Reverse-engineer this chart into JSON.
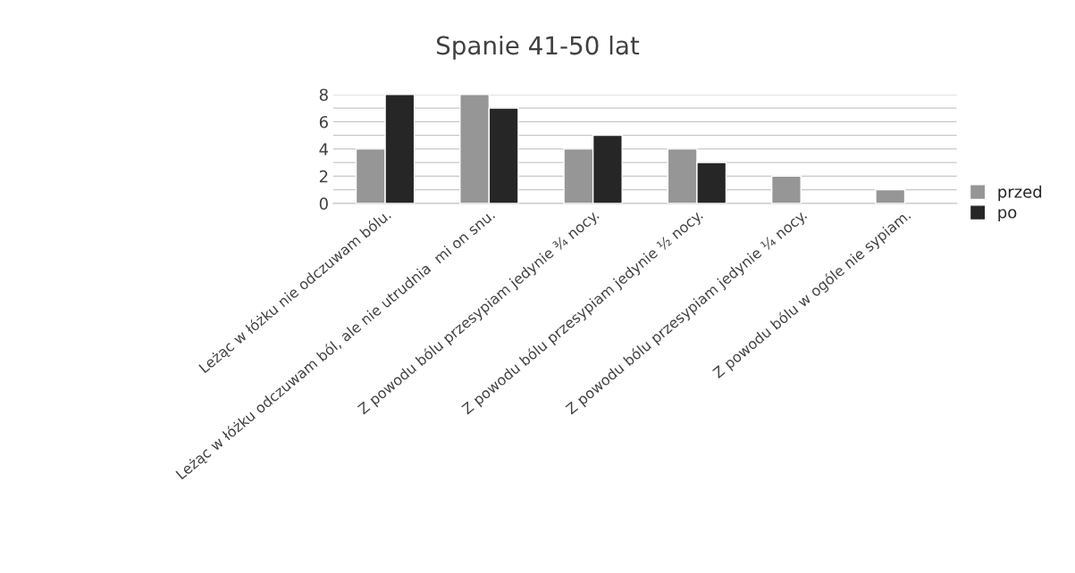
{
  "chart_data": {
    "type": "bar",
    "title": "Spanie 41-50 lat",
    "categories": [
      "Leżąc w łóżku nie odczuwam bólu.",
      "Leżąc w łóżku odczuwam ból, ale nie utrudnia  mi on snu.",
      "Z powodu bólu przesypiam jedynie ¾ nocy.",
      "Z powodu bólu przesypiam jedynie ½ nocy.",
      "Z powodu bólu przesypiam jedynie ¼ nocy.",
      "Z powodu bólu w ogóle nie sypiam."
    ],
    "series": [
      {
        "name": "przed",
        "color": "#969696",
        "values": [
          4,
          8,
          4,
          4,
          2,
          1
        ]
      },
      {
        "name": "po",
        "color": "#262626",
        "values": [
          8,
          7,
          5,
          3,
          null,
          null
        ]
      }
    ],
    "ylim": [
      0,
      8
    ],
    "yticks": [
      0,
      {
        "value": 1,
        "label": null
      },
      2,
      {
        "value": 3,
        "label": null
      },
      4,
      {
        "value": 5,
        "label": null
      },
      6,
      {
        "value": 7,
        "label": null
      },
      8
    ],
    "grid": "y",
    "legend": "right"
  }
}
